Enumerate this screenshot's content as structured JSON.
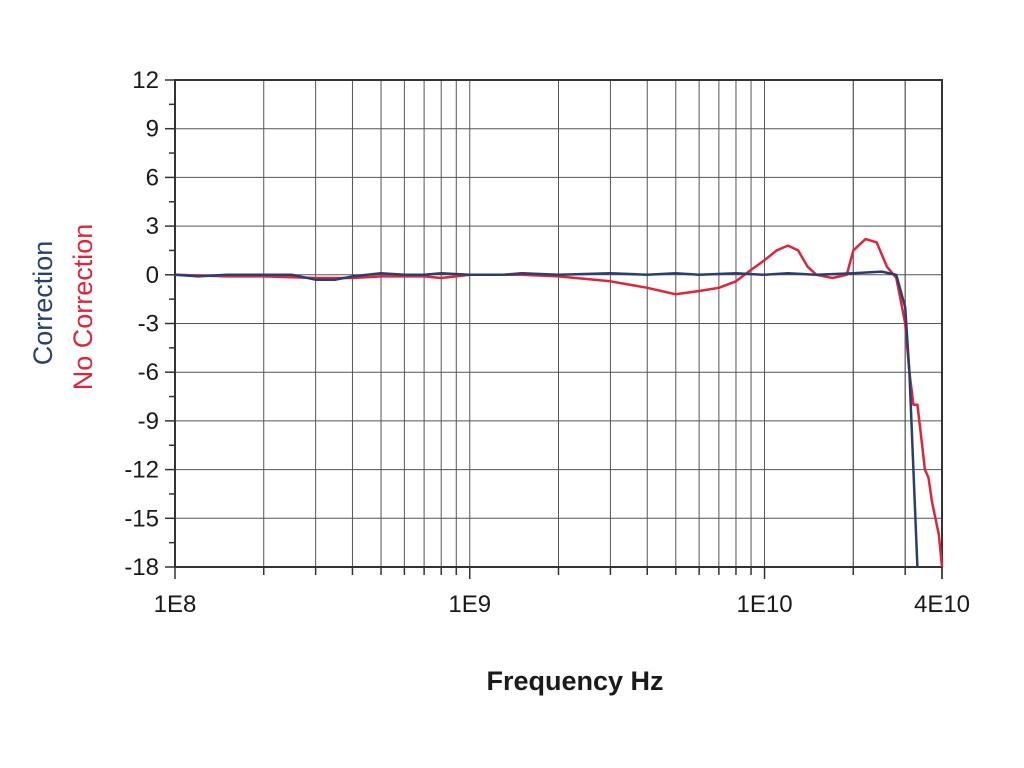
{
  "chart_data": {
    "type": "line",
    "title": "",
    "xlabel": "Frequency Hz",
    "ylabel": "",
    "x_scale": "log",
    "xlim": [
      100000000,
      40000000000
    ],
    "ylim": [
      -18,
      12
    ],
    "grid": true,
    "legend_placement": "left-vertical",
    "y_ticks": [
      12,
      9,
      6,
      3,
      0,
      -3,
      -6,
      -9,
      -12,
      -15,
      -18
    ],
    "y_tick_labels": [
      "12",
      "9",
      "6",
      "3",
      "0",
      "-3",
      "-6",
      "-9",
      "-12",
      "-15",
      "-18"
    ],
    "x_ticks": [
      100000000,
      1000000000,
      10000000000,
      40000000000
    ],
    "x_tick_labels": [
      "1E8",
      "1E9",
      "1E10",
      "4E10"
    ],
    "series": [
      {
        "name": "Correction",
        "color": "#2a3f6e",
        "points": [
          [
            100000000,
            0
          ],
          [
            120000000,
            -0.1
          ],
          [
            150000000,
            0
          ],
          [
            200000000,
            0
          ],
          [
            250000000,
            0
          ],
          [
            300000000,
            -0.3
          ],
          [
            350000000,
            -0.3
          ],
          [
            400000000,
            -0.1
          ],
          [
            500000000,
            0.1
          ],
          [
            600000000,
            0
          ],
          [
            700000000,
            0
          ],
          [
            800000000,
            0.1
          ],
          [
            1000000000,
            0
          ],
          [
            1300000000,
            0
          ],
          [
            1500000000,
            0.1
          ],
          [
            2000000000,
            0
          ],
          [
            3000000000,
            0.1
          ],
          [
            4000000000,
            0
          ],
          [
            5000000000,
            0.1
          ],
          [
            6000000000,
            0
          ],
          [
            8000000000,
            0.1
          ],
          [
            10000000000,
            0
          ],
          [
            12000000000,
            0.1
          ],
          [
            15000000000,
            0
          ],
          [
            20000000000,
            0.1
          ],
          [
            25000000000,
            0.2
          ],
          [
            28000000000,
            0
          ],
          [
            30000000000,
            -2
          ],
          [
            31000000000,
            -6
          ],
          [
            32000000000,
            -12
          ],
          [
            33000000000,
            -18
          ]
        ]
      },
      {
        "name": "No Correction",
        "color": "#e0243a",
        "points": [
          [
            100000000,
            0
          ],
          [
            150000000,
            -0.1
          ],
          [
            200000000,
            -0.1
          ],
          [
            300000000,
            -0.2
          ],
          [
            400000000,
            -0.2
          ],
          [
            500000000,
            -0.1
          ],
          [
            700000000,
            -0.1
          ],
          [
            800000000,
            -0.2
          ],
          [
            1000000000,
            0
          ],
          [
            1500000000,
            0
          ],
          [
            2000000000,
            -0.1
          ],
          [
            3000000000,
            -0.4
          ],
          [
            4000000000,
            -0.8
          ],
          [
            5000000000,
            -1.2
          ],
          [
            6000000000,
            -1.0
          ],
          [
            7000000000,
            -0.8
          ],
          [
            8000000000,
            -0.4
          ],
          [
            9000000000,
            0.3
          ],
          [
            10000000000,
            0.9
          ],
          [
            11000000000,
            1.5
          ],
          [
            12000000000,
            1.8
          ],
          [
            13000000000,
            1.5
          ],
          [
            14000000000,
            0.5
          ],
          [
            15000000000,
            0
          ],
          [
            17000000000,
            -0.2
          ],
          [
            19000000000,
            0
          ],
          [
            20000000000,
            1.5
          ],
          [
            22000000000,
            2.2
          ],
          [
            24000000000,
            2.0
          ],
          [
            26000000000,
            0.5
          ],
          [
            28000000000,
            -0.2
          ],
          [
            30000000000,
            -3
          ],
          [
            31000000000,
            -6
          ],
          [
            32000000000,
            -8
          ],
          [
            33000000000,
            -8
          ],
          [
            34000000000,
            -10
          ],
          [
            35000000000,
            -12
          ],
          [
            36000000000,
            -12.5
          ],
          [
            37000000000,
            -14
          ],
          [
            38000000000,
            -15
          ],
          [
            39000000000,
            -16
          ],
          [
            40000000000,
            -18
          ]
        ]
      }
    ]
  },
  "colors": {
    "grid": "#555555",
    "frame": "#333333",
    "correction": "#2a3f6e",
    "no_correction": "#e0243a"
  }
}
